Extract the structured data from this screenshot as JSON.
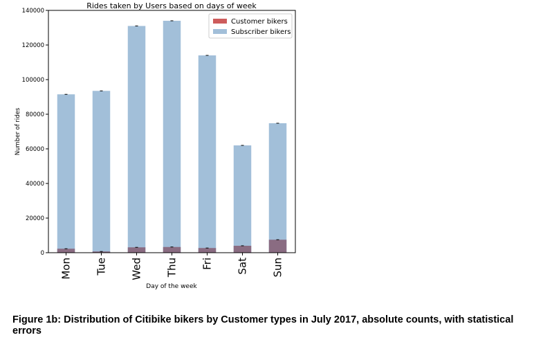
{
  "chart_data": {
    "type": "bar",
    "stacked": false,
    "overlaid": true,
    "title": "Rides taken by Users based on days of week",
    "xlabel": "Day of the week",
    "ylabel": "Number of rides",
    "categories": [
      "Mon",
      "Tue",
      "Wed",
      "Thu",
      "Fri",
      "Sat",
      "Sun"
    ],
    "series": [
      {
        "name": "Customer bikers",
        "color": "#cd5c5c",
        "values": [
          2300,
          700,
          3100,
          3300,
          2700,
          4000,
          7500
        ]
      },
      {
        "name": "Subscriber bikers",
        "color": "#a2bfd9",
        "values": [
          91500,
          93500,
          131000,
          134000,
          114000,
          62000,
          74800
        ]
      }
    ],
    "overlap_color": "#8a6c82",
    "error_bars": true,
    "ylim": [
      0,
      140000
    ],
    "yticks": [
      0,
      20000,
      40000,
      60000,
      80000,
      100000,
      120000,
      140000
    ],
    "legend_position": "upper right"
  },
  "caption": "Figure 1b: Distribution of Citibike bikers by Customer types in July 2017, absolute counts, with statistical errors"
}
